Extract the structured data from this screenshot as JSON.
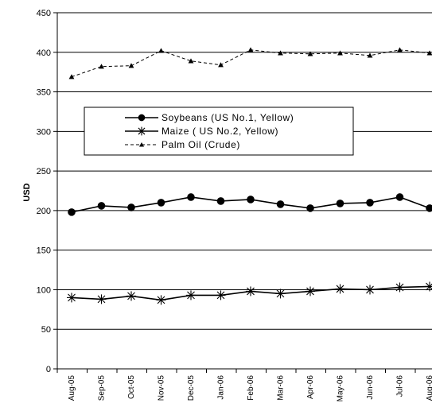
{
  "chart_data": {
    "type": "line",
    "title": "",
    "xlabel": "",
    "ylabel": "USD",
    "ylim": [
      0,
      450
    ],
    "yticks": [
      0,
      50,
      100,
      150,
      200,
      250,
      300,
      350,
      400,
      450
    ],
    "grid": "horizontal",
    "legend_position": "center",
    "categories": [
      "Aug-05",
      "Sep-05",
      "Oct-05",
      "Nov-05",
      "Dec-05",
      "Jan-06",
      "Feb-06",
      "Mar-06",
      "Apr-06",
      "May-06",
      "Jun-06",
      "Jul-06",
      "Aug-06"
    ],
    "series": [
      {
        "name": "Soybeans (US No.1, Yellow)",
        "marker": "circle",
        "line": "solid",
        "color": "#000000",
        "values": [
          198,
          206,
          204,
          210,
          217,
          212,
          214,
          208,
          203,
          209,
          210,
          217,
          203
        ]
      },
      {
        "name": "Maize ( US No.2, Yellow)",
        "marker": "asterisk",
        "line": "solid",
        "color": "#000000",
        "values": [
          90,
          88,
          92,
          87,
          93,
          93,
          98,
          95,
          98,
          101,
          100,
          103,
          104
        ]
      },
      {
        "name": "Palm Oil (Crude)",
        "marker": "triangle",
        "line": "dashed",
        "color": "#000000",
        "values": [
          369,
          382,
          383,
          402,
          389,
          384,
          403,
          399,
          398,
          399,
          396,
          403,
          399
        ]
      }
    ]
  }
}
